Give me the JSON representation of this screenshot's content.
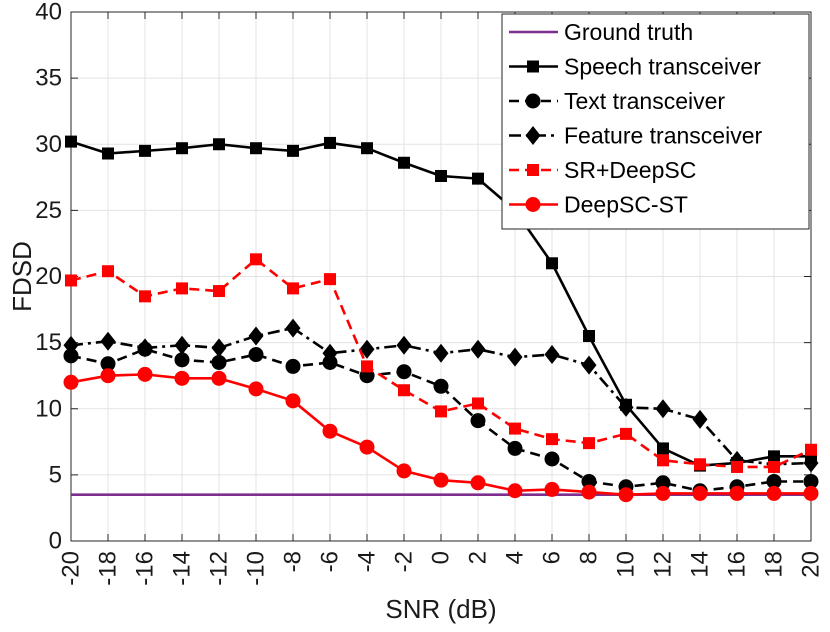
{
  "chart_data": {
    "type": "line",
    "xlabel": "SNR (dB)",
    "ylabel": "FDSD",
    "xlim": [
      -20,
      20
    ],
    "ylim": [
      0,
      40
    ],
    "x_ticks": [
      -20,
      -18,
      -16,
      -14,
      -12,
      -10,
      -8,
      -6,
      -4,
      -2,
      0,
      2,
      4,
      6,
      8,
      10,
      12,
      14,
      16,
      18,
      20
    ],
    "y_ticks": [
      0,
      5,
      10,
      15,
      20,
      25,
      30,
      35,
      40
    ],
    "grid": true,
    "legend_position": "top-right",
    "x": [
      -20,
      -18,
      -16,
      -14,
      -12,
      -10,
      -8,
      -6,
      -4,
      -2,
      0,
      2,
      4,
      6,
      8,
      10,
      12,
      14,
      16,
      18,
      20
    ],
    "series": [
      {
        "name": "Ground truth",
        "color": "#7E2F8E",
        "line_style": "solid",
        "marker": "none",
        "values": [
          3.5,
          3.5,
          3.5,
          3.5,
          3.5,
          3.5,
          3.5,
          3.5,
          3.5,
          3.5,
          3.5,
          3.5,
          3.5,
          3.5,
          3.5,
          3.5,
          3.5,
          3.5,
          3.5,
          3.5,
          3.5
        ]
      },
      {
        "name": "Speech transceiver",
        "color": "#000000",
        "line_style": "solid",
        "marker": "square",
        "values": [
          30.2,
          29.3,
          29.5,
          29.7,
          30.0,
          29.7,
          29.5,
          30.1,
          29.7,
          28.6,
          27.6,
          27.4,
          25.0,
          21.0,
          15.5,
          10.3,
          7.0,
          5.7,
          5.9,
          6.4,
          6.4
        ]
      },
      {
        "name": "Text transceiver",
        "color": "#000000",
        "line_style": "dashed",
        "marker": "circle",
        "values": [
          14.0,
          13.4,
          14.5,
          13.7,
          13.5,
          14.1,
          13.2,
          13.5,
          12.5,
          12.8,
          11.7,
          9.1,
          7.0,
          6.2,
          4.5,
          4.1,
          4.4,
          3.8,
          4.1,
          4.5,
          4.5
        ]
      },
      {
        "name": "Feature transceiver",
        "color": "#000000",
        "line_style": "dashdot",
        "marker": "diamond",
        "values": [
          14.8,
          15.1,
          14.6,
          14.8,
          14.6,
          15.5,
          16.1,
          14.2,
          14.5,
          14.8,
          14.2,
          14.5,
          13.9,
          14.1,
          13.3,
          10.1,
          10.0,
          9.2,
          6.1,
          5.8,
          5.9
        ]
      },
      {
        "name": "SR+DeepSC",
        "color": "#FF0000",
        "line_style": "dashed",
        "marker": "square",
        "values": [
          19.7,
          20.4,
          18.5,
          19.1,
          18.9,
          21.3,
          19.1,
          19.8,
          13.2,
          11.4,
          9.8,
          10.4,
          8.5,
          7.7,
          7.4,
          8.1,
          6.1,
          5.8,
          5.6,
          5.6,
          6.9
        ]
      },
      {
        "name": "DeepSC-ST",
        "color": "#FF0000",
        "line_style": "solid",
        "marker": "circle",
        "values": [
          12.0,
          12.5,
          12.6,
          12.3,
          12.3,
          11.5,
          10.6,
          8.3,
          7.1,
          5.3,
          4.6,
          4.4,
          3.8,
          3.9,
          3.7,
          3.5,
          3.6,
          3.6,
          3.6,
          3.6,
          3.6
        ]
      }
    ]
  }
}
